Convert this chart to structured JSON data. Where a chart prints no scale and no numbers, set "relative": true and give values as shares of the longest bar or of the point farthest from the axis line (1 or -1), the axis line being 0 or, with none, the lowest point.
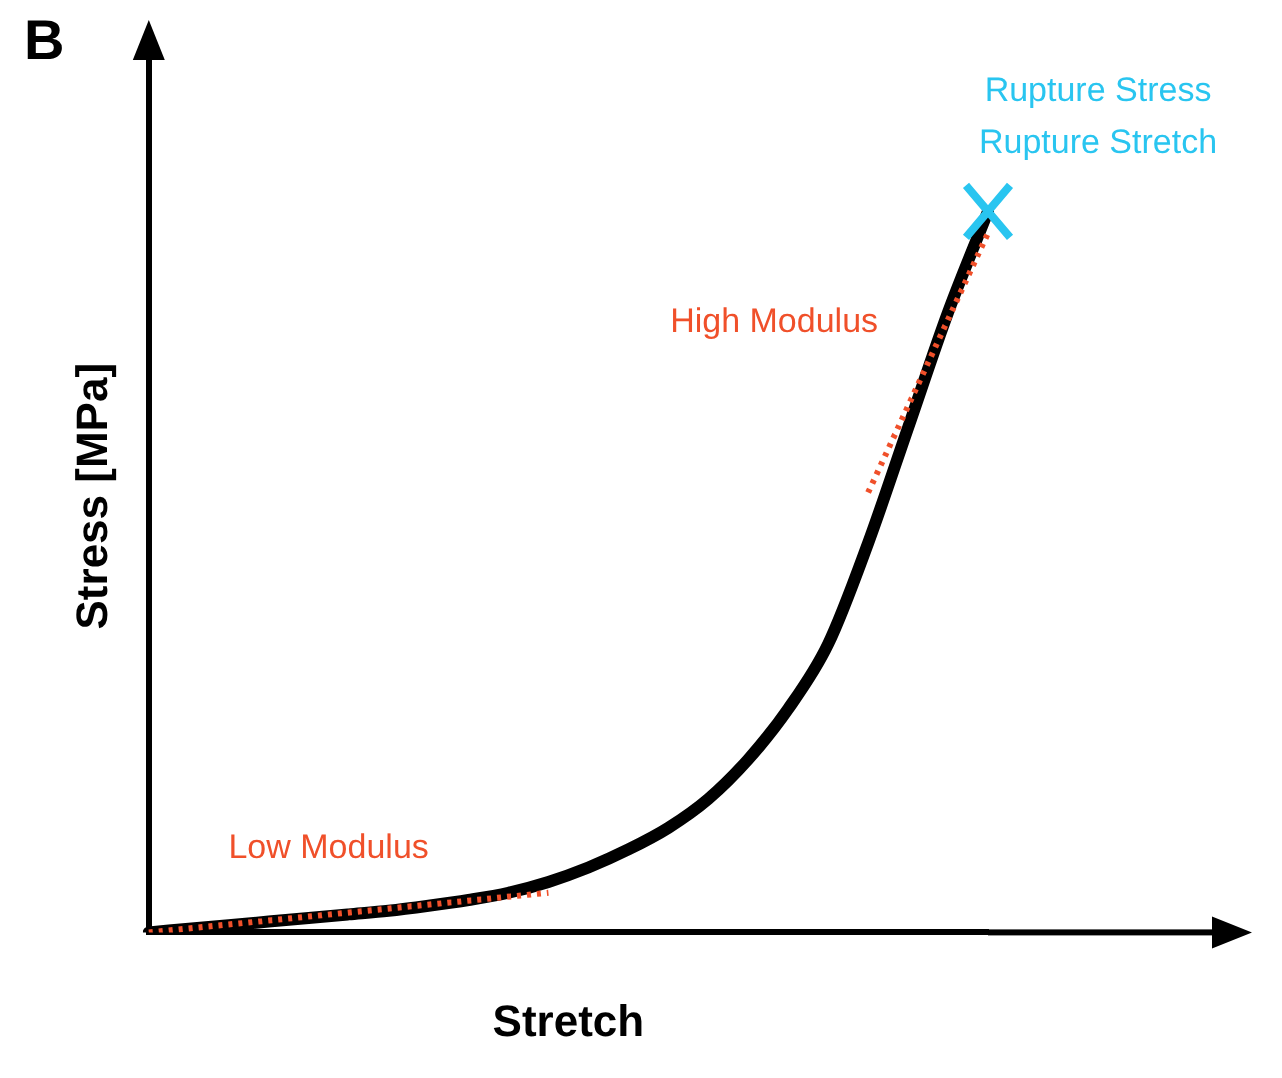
{
  "chart_data": {
    "type": "line",
    "title": "B",
    "xlabel": "Stretch",
    "ylabel": "Stress [MPa]",
    "relative": true,
    "legend": false,
    "grid": false,
    "marker": "none",
    "categories": [
      null,
      null,
      null,
      null,
      null,
      null,
      null,
      null,
      null,
      null,
      null,
      null,
      null,
      null,
      null,
      null,
      null,
      null,
      null,
      null,
      null,
      null
    ],
    "series": [
      {
        "color": "#000000",
        "values": [
          0,
          0.005,
          0.01,
          0.015,
          0.02,
          0.025,
          0.03,
          0.037,
          0.045,
          0.055,
          0.07,
          0.09,
          0.115,
          0.145,
          0.185,
          0.24,
          0.31,
          0.4,
          0.54,
          0.7,
          0.86,
          1
        ]
      },
      {
        "name": "Low Modulus",
        "color": "#f0502a",
        "line_style": "dotted",
        "values": [
          0,
          null,
          null,
          null,
          null,
          null,
          null,
          null,
          null,
          null,
          0.055,
          null,
          null,
          null,
          null,
          null,
          null,
          null,
          null,
          null,
          null,
          null
        ]
      },
      {
        "name": "High Modulus",
        "color": "#f0502a",
        "line_style": "dotted",
        "values": [
          null,
          null,
          null,
          null,
          null,
          null,
          null,
          null,
          null,
          null,
          null,
          null,
          null,
          null,
          null,
          null,
          null,
          null,
          0.61,
          null,
          null,
          0.97
        ]
      }
    ],
    "annotations": [
      "Rupture Stress",
      "Rupture Stretch"
    ]
  }
}
